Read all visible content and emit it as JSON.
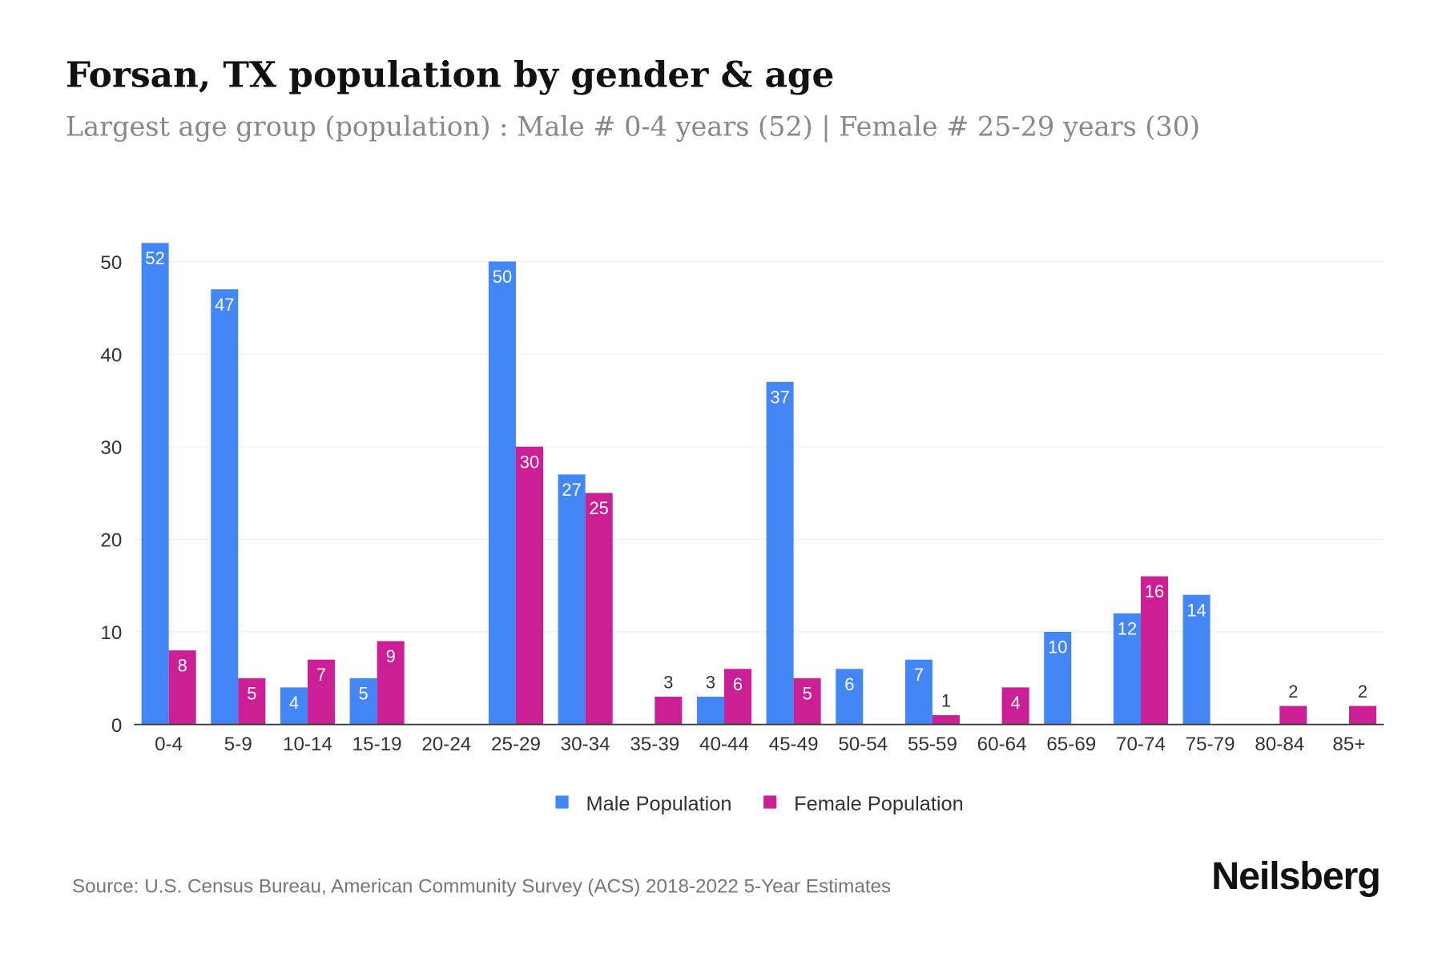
{
  "title": "Forsan, TX population by gender & age",
  "subtitle": "Largest age group (population) : Male # 0-4 years (52) | Female # 25-29 years (30)",
  "source": "Source: U.S. Census Bureau, American Community Survey (ACS) 2018-2022 5-Year Estimates",
  "logo": "Neilsberg",
  "colors": {
    "male": "#4287f5",
    "female": "#cc1f96"
  },
  "chart_data": {
    "type": "bar",
    "categories": [
      "0-4",
      "5-9",
      "10-14",
      "15-19",
      "20-24",
      "25-29",
      "30-34",
      "35-39",
      "40-44",
      "45-49",
      "50-54",
      "55-59",
      "60-64",
      "65-69",
      "70-74",
      "75-79",
      "80-84",
      "85+"
    ],
    "series": [
      {
        "name": "Male Population",
        "values": [
          52,
          47,
          4,
          5,
          0,
          50,
          27,
          0,
          3,
          37,
          6,
          7,
          0,
          10,
          12,
          14,
          0,
          0
        ]
      },
      {
        "name": "Female Population",
        "values": [
          8,
          5,
          7,
          9,
          0,
          30,
          25,
          3,
          6,
          5,
          0,
          1,
          4,
          0,
          16,
          0,
          2,
          2
        ]
      }
    ],
    "yticks": [
      0,
      10,
      20,
      30,
      40,
      50
    ],
    "ylim": [
      0,
      52
    ],
    "grid": true,
    "legend": "bottom"
  }
}
